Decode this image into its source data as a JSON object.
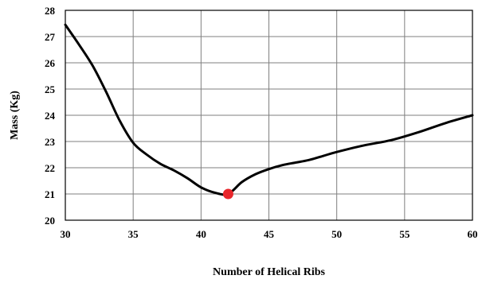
{
  "chart_data": {
    "type": "line",
    "title": "",
    "xlabel": "Number of Helical Ribs",
    "ylabel": "Mass (Kg)",
    "xlim": [
      30,
      60
    ],
    "ylim": [
      20,
      28
    ],
    "xticks": [
      30,
      35,
      40,
      45,
      50,
      55,
      60
    ],
    "yticks": [
      20,
      21,
      22,
      23,
      24,
      25,
      26,
      27,
      28
    ],
    "grid": true,
    "legend": "none",
    "series": [
      {
        "color": "#000000",
        "x": [
          30,
          31,
          32,
          33,
          34,
          35,
          36,
          37,
          38,
          39,
          40,
          41,
          42,
          43,
          44,
          45,
          46,
          47,
          48,
          49,
          50,
          52,
          54,
          56,
          58,
          60
        ],
        "y": [
          27.45,
          26.7,
          25.9,
          24.9,
          23.8,
          22.95,
          22.5,
          22.15,
          21.9,
          21.6,
          21.25,
          21.05,
          21.0,
          21.45,
          21.75,
          21.95,
          22.1,
          22.2,
          22.3,
          22.45,
          22.6,
          22.85,
          23.05,
          23.35,
          23.7,
          24.0
        ]
      }
    ],
    "highlight": {
      "x": 42,
      "y": 21.0,
      "color": "#e8262b"
    }
  }
}
